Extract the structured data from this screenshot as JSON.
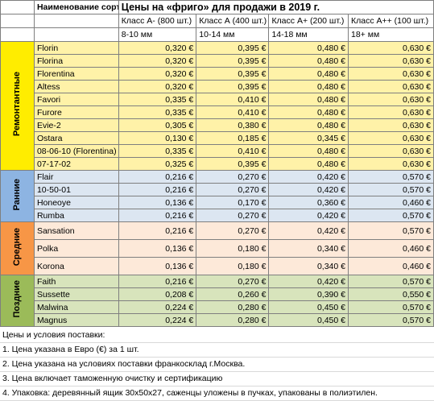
{
  "header": {
    "variety_col": "Наименование сорта",
    "title": "Цены на «фриго» для продажи в 2019 г.",
    "classes": [
      {
        "label": "Класс А- (800 шт.)",
        "size": "8-10 мм"
      },
      {
        "label": "Класс А (400 шт.)",
        "size": "10-14 мм"
      },
      {
        "label": "Класс А+ (200 шт.)",
        "size": "14-18 мм"
      },
      {
        "label": "Класс А++ (100 шт.)",
        "size": "18+ мм"
      }
    ]
  },
  "colors": {
    "yellow": "#fff2a8",
    "yellow_label": "#ffed00",
    "blue": "#dce6f1",
    "blue_label": "#8db4e2",
    "peach": "#fde9d9",
    "peach_label": "#f79646",
    "green": "#d8e4bc",
    "green_label": "#9bbb59",
    "border": "#7f7f7f"
  },
  "groups": [
    {
      "label": "Ремонтантные",
      "bg": "#fff2a8",
      "label_bg": "#ffed00",
      "rows": [
        {
          "name": "Florin",
          "prices": [
            "0,320 €",
            "0,395 €",
            "0,480 €",
            "0,630 €"
          ]
        },
        {
          "name": "Florina",
          "prices": [
            "0,320 €",
            "0,395 €",
            "0,480 €",
            "0,630 €"
          ]
        },
        {
          "name": "Florentina",
          "prices": [
            "0,320 €",
            "0,395 €",
            "0,480 €",
            "0,630 €"
          ]
        },
        {
          "name": "Altess",
          "prices": [
            "0,320 €",
            "0,395 €",
            "0,480 €",
            "0,630 €"
          ]
        },
        {
          "name": "Favori",
          "prices": [
            "0,335 €",
            "0,410 €",
            "0,480 €",
            "0,630 €"
          ]
        },
        {
          "name": "Furore",
          "prices": [
            "0,335 €",
            "0,410 €",
            "0,480 €",
            "0,630 €"
          ]
        },
        {
          "name": "Evie-2",
          "prices": [
            "0,305 €",
            "0,380 €",
            "0,480 €",
            "0,630 €"
          ]
        },
        {
          "name": "Ostara",
          "prices": [
            "0,130 €",
            "0,185 €",
            "0,345 €",
            "0,630 €"
          ]
        },
        {
          "name": "08-06-10 (Florentina)",
          "prices": [
            "0,335 €",
            "0,410 €",
            "0,480 €",
            "0,630 €"
          ]
        },
        {
          "name": "07-17-02",
          "prices": [
            "0,325 €",
            "0,395 €",
            "0,480 €",
            "0,630 €"
          ]
        }
      ]
    },
    {
      "label": "Ранние",
      "bg": "#dce6f1",
      "label_bg": "#8db4e2",
      "rows": [
        {
          "name": "Flair",
          "prices": [
            "0,216 €",
            "0,270 €",
            "0,420 €",
            "0,570 €"
          ]
        },
        {
          "name": "10-50-01",
          "prices": [
            "0,216 €",
            "0,270 €",
            "0,420 €",
            "0,570 €"
          ]
        },
        {
          "name": "Honeoye",
          "prices": [
            "0,136 €",
            "0,170 €",
            "0,360 €",
            "0,460 €"
          ]
        },
        {
          "name": "Rumba",
          "prices": [
            "0,216 €",
            "0,270 €",
            "0,420 €",
            "0,570 €"
          ]
        }
      ]
    },
    {
      "label": "Средние",
      "bg": "#fde9d9",
      "label_bg": "#f79646",
      "rows": [
        {
          "name": "Sansation",
          "prices": [
            "0,216 €",
            "0,270 €",
            "0,420 €",
            "0,570 €"
          ]
        },
        {
          "name": "Polka",
          "prices": [
            "0,136 €",
            "0,180 €",
            "0,340 €",
            "0,460 €"
          ]
        },
        {
          "name": "Korona",
          "prices": [
            "0,136 €",
            "0,180 €",
            "0,340 €",
            "0,460 €"
          ]
        }
      ]
    },
    {
      "label": "Поздние",
      "bg": "#d8e4bc",
      "label_bg": "#9bbb59",
      "rows": [
        {
          "name": "Faith",
          "prices": [
            "0,216 €",
            "0,270 €",
            "0,420 €",
            "0,570 €"
          ]
        },
        {
          "name": "Sussette",
          "prices": [
            "0,208 €",
            "0,260 €",
            "0,390 €",
            "0,550 €"
          ]
        },
        {
          "name": "Malwina",
          "prices": [
            "0,224 €",
            "0,280 €",
            "0,450 €",
            "0,570 €"
          ]
        },
        {
          "name": "Magnus",
          "prices": [
            "0,224 €",
            "0,280 €",
            "0,450 €",
            "0,570 €"
          ]
        }
      ]
    }
  ],
  "notes": [
    "Цены и условия поставки:",
    "1. Цена указана в Евро (€) за 1 шт.",
    "2. Цена указана на условиях поставки франкосклад г.Москва.",
    "3. Цена включает таможенную очистку и сертификацию",
    "4. Упаковка: деревянный ящик 30х50х27, саженцы уложены в пучках, упакованы в полиэтилен."
  ]
}
